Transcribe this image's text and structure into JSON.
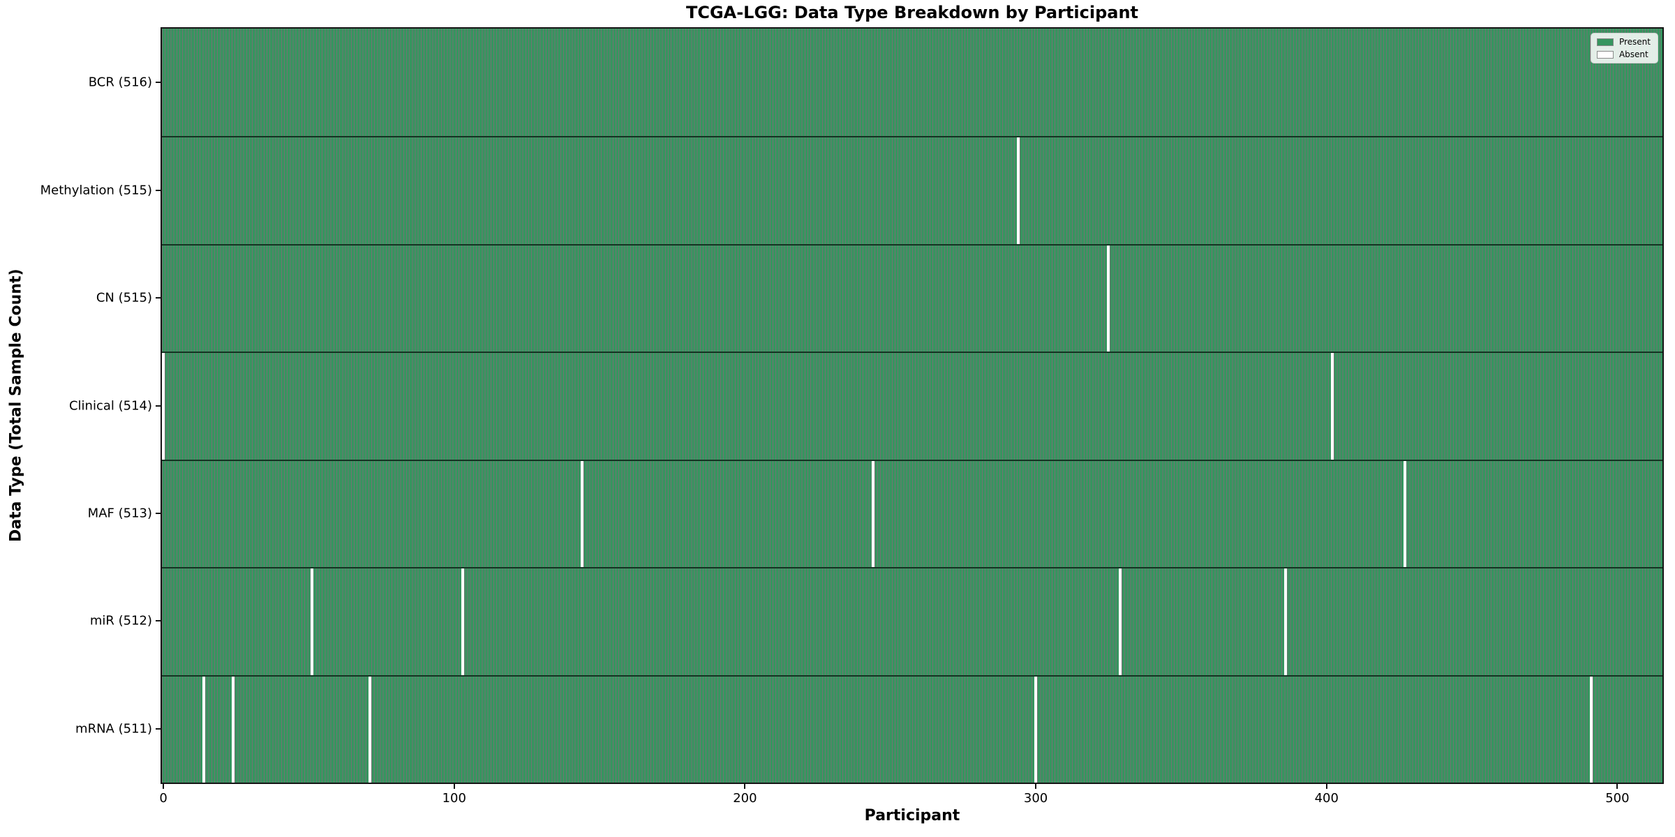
{
  "chart_data": {
    "type": "heatmap",
    "title": "TCGA-LGG: Data Type Breakdown by Participant",
    "xlabel": "Participant",
    "ylabel": "Data Type (Total Sample Count)",
    "n_participants": 516,
    "x_ticks": [
      0,
      100,
      200,
      300,
      400,
      500
    ],
    "present_color": "#36955f",
    "absent_color": "#ffffff",
    "legend": [
      {
        "label": "Present",
        "color": "#36955f"
      },
      {
        "label": "Absent",
        "color": "#ffffff"
      }
    ],
    "rows": [
      {
        "label": "BCR (516)",
        "data_type": "BCR",
        "total": 516,
        "absent_participants": []
      },
      {
        "label": "Methylation (515)",
        "data_type": "Methylation",
        "total": 515,
        "absent_participants": [
          294
        ]
      },
      {
        "label": "CN (515)",
        "data_type": "CN",
        "total": 515,
        "absent_participants": [
          325
        ]
      },
      {
        "label": "Clinical (514)",
        "data_type": "Clinical",
        "total": 514,
        "absent_participants": [
          0,
          402
        ]
      },
      {
        "label": "MAF (513)",
        "data_type": "MAF",
        "total": 513,
        "absent_participants": [
          144,
          244,
          427
        ]
      },
      {
        "label": "miR (512)",
        "data_type": "miR",
        "total": 512,
        "absent_participants": [
          51,
          103,
          329,
          386
        ]
      },
      {
        "label": "mRNA (511)",
        "data_type": "mRNA",
        "total": 511,
        "absent_participants": [
          14,
          24,
          71,
          300,
          491
        ]
      }
    ]
  }
}
